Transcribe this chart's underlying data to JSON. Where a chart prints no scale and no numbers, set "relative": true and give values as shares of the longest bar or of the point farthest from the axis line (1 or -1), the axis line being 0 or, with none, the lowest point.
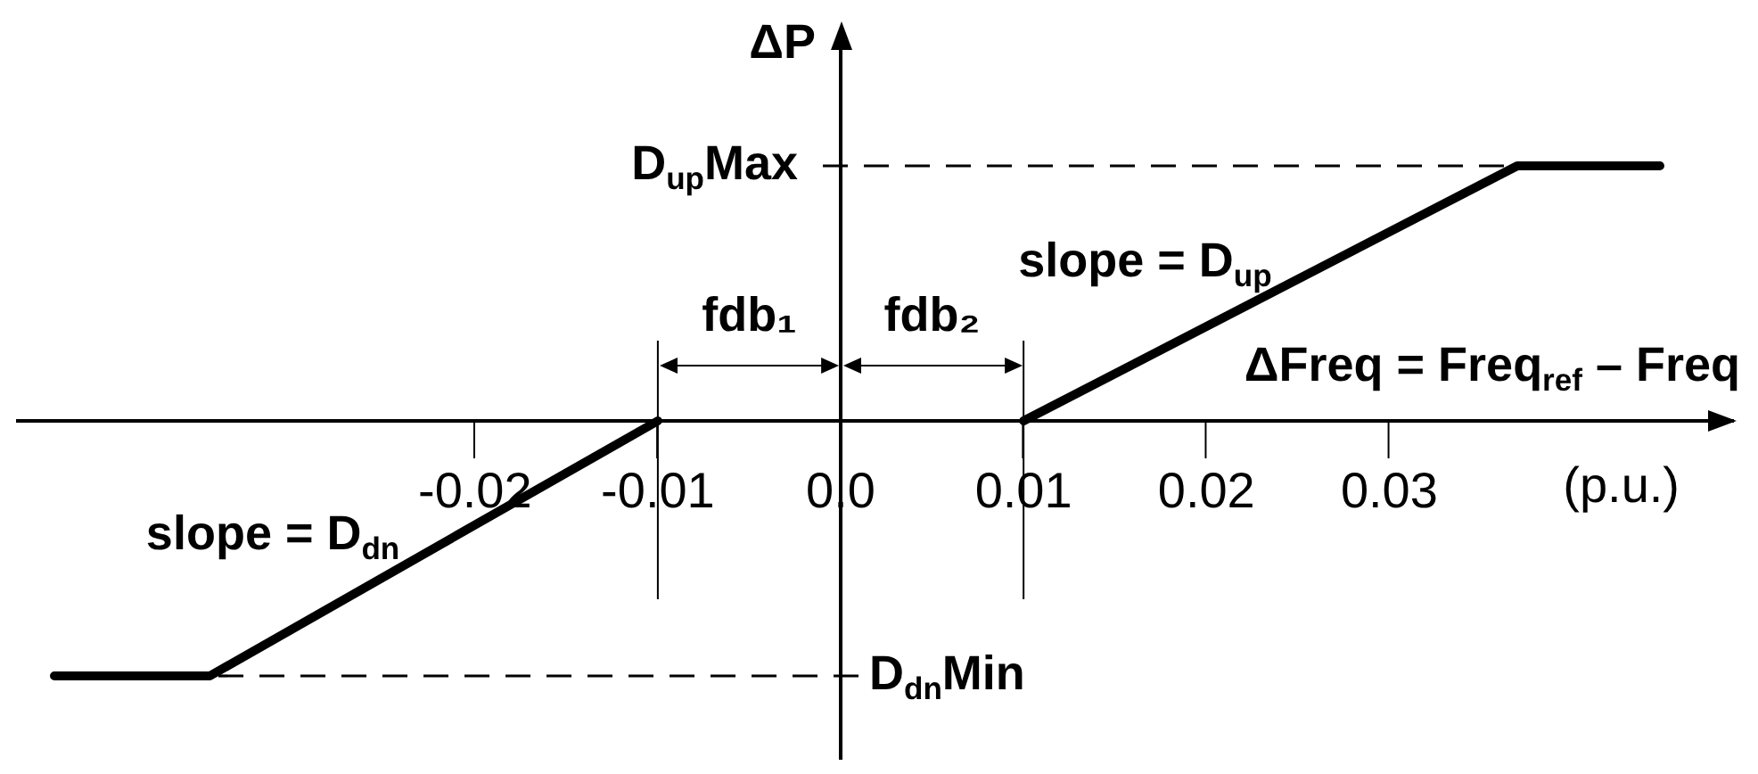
{
  "chart_data": {
    "type": "line",
    "xlabel": "ΔFreq = Freq$_{ref}$ – Freq",
    "ylabel": "ΔP",
    "x": [
      -0.043,
      -0.0345,
      -0.01,
      0,
      0.01,
      0.037,
      0.0448
    ],
    "series": [
      {
        "color": "#000000",
        "values": [
          -1,
          -1,
          0,
          null,
          0,
          1,
          1
        ]
      }
    ],
    "relative": true,
    "xlim": [
      -0.045,
      0.0488
    ],
    "xticks": [
      -0.02,
      -0.01,
      {
        "value": 0,
        "label": "0.0"
      },
      0.01,
      0.02,
      0.03
    ],
    "ref_lines": [
      {
        "axis": "y",
        "value": 1,
        "label": "D$_{up}$Max",
        "line_style": "dashed"
      },
      {
        "axis": "y",
        "value": -1,
        "label": "D$_{dn}$Min",
        "line_style": "dashed"
      },
      {
        "axis": "x",
        "value": -0.01,
        "label": "fdb₁"
      },
      {
        "axis": "x",
        "value": 0.01,
        "label": "fdb₂"
      }
    ],
    "annotations": [
      {
        "text": "slope = D$_{dn}$",
        "x": -0.021,
        "y": -0.45
      },
      {
        "text": "slope = D$_{up}$",
        "x": 0.0267,
        "y": 0.62
      },
      "(p.u.)"
    ],
    "marker": "none"
  }
}
